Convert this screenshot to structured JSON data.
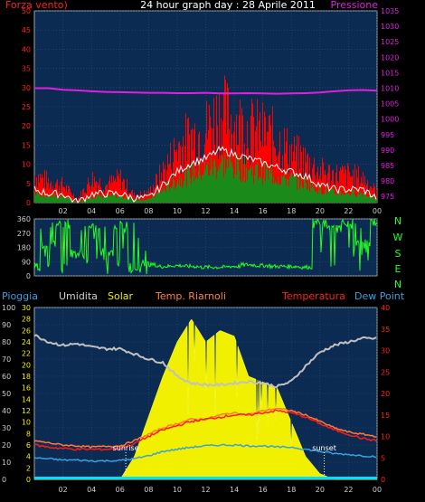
{
  "title": "24 hour graph day : 28 Aprile 2011",
  "colors": {
    "wind": "#ff0000",
    "gust_white": "#ffffff",
    "avg": "#1a8a1a",
    "pressure": "#e020e0",
    "direction": "#20ff20",
    "humidity": "#c0c0c0",
    "solar": "#f0f000",
    "temp_ri": "#ff7a3a",
    "temperatura": "#ff1a1a",
    "dewpoint": "#3aa0e0",
    "rain": "#00e0ff",
    "bg": "#0c2b52"
  },
  "chart_data": [
    {
      "type": "line",
      "id": "wind",
      "legend": {
        "left": "Forza vento)",
        "right": "Pressione"
      },
      "x_ticks": [
        "02",
        "04",
        "06",
        "08",
        "10",
        "12",
        "14",
        "16",
        "18",
        "20",
        "22",
        "00"
      ],
      "y_left": {
        "ticks": [
          0,
          5,
          10,
          15,
          20,
          25,
          30,
          35,
          40,
          45,
          50
        ],
        "range": [
          0,
          50
        ]
      },
      "y_right": {
        "ticks": [
          975,
          980,
          985,
          990,
          995,
          1000,
          1005,
          1010,
          1015,
          1020,
          1025,
          1030,
          1035
        ],
        "range": [
          973,
          1035
        ]
      },
      "x": [
        0,
        1,
        2,
        3,
        4,
        5,
        6,
        7,
        8,
        9,
        10,
        11,
        12,
        13,
        14,
        15,
        16,
        17,
        18,
        19,
        20,
        21,
        22,
        23,
        24
      ],
      "series": [
        {
          "name": "Forza vento)",
          "values": [
            8,
            6,
            5,
            1,
            7,
            5,
            7,
            2,
            3,
            9,
            16,
            19,
            21,
            26,
            23,
            21,
            20,
            18,
            14,
            12,
            9,
            8,
            8,
            7,
            3
          ]
        },
        {
          "name": "Forza media",
          "values": [
            3,
            2,
            2,
            0,
            2,
            2,
            2,
            1,
            1,
            4,
            7,
            9,
            10,
            12,
            11,
            10,
            9,
            8,
            7,
            6,
            4,
            3,
            3,
            3,
            1
          ]
        },
        {
          "name": "Pressione",
          "values": [
            1010,
            1010,
            1009.5,
            1009.3,
            1009,
            1008.8,
            1008.7,
            1008.6,
            1008.5,
            1008.5,
            1008.4,
            1008.4,
            1008.5,
            1008.3,
            1008.3,
            1008.4,
            1008.3,
            1008.2,
            1008.3,
            1008.4,
            1008.6,
            1009,
            1009.3,
            1009.4,
            1009.2
          ]
        }
      ]
    },
    {
      "type": "line",
      "id": "direction",
      "legend": {
        "right": [
          "N",
          "W",
          "S",
          "E",
          "N"
        ]
      },
      "y_left": {
        "ticks": [
          0,
          90,
          180,
          270,
          360
        ],
        "range": [
          0,
          360
        ]
      },
      "x": [
        0,
        1,
        2,
        3,
        4,
        5,
        6,
        7,
        8,
        9,
        10,
        11,
        12,
        13,
        14,
        15,
        16,
        17,
        18,
        19,
        20,
        21,
        22,
        23,
        24
      ],
      "series": [
        {
          "name": "Direzione",
          "values": [
            60,
            200,
            330,
            140,
            300,
            150,
            320,
            50,
            70,
            60,
            65,
            60,
            55,
            55,
            60,
            70,
            65,
            60,
            60,
            55,
            330,
            300,
            340,
            200,
            340
          ]
        }
      ]
    },
    {
      "type": "line",
      "id": "temp",
      "legend": {
        "labels": [
          "Pioggia",
          "Umidita",
          "Solar",
          "Temp. Riarnoli",
          "Temperatura",
          "Dew Point"
        ]
      },
      "x_ticks": [
        "02",
        "04",
        "06",
        "08",
        "10",
        "12",
        "14",
        "16",
        "18",
        "20",
        "22",
        "00"
      ],
      "y_outer": {
        "ticks": [
          0,
          10,
          20,
          30,
          40,
          50,
          60,
          70,
          80,
          90,
          100
        ],
        "range": [
          0,
          100
        ]
      },
      "y_inner": {
        "ticks": [
          0,
          2,
          4,
          6,
          8,
          10,
          12,
          14,
          16,
          18,
          20,
          22,
          24,
          26,
          28,
          30
        ],
        "range": [
          0,
          30
        ]
      },
      "y_right": {
        "ticks": [
          0,
          5,
          10,
          15,
          20,
          25,
          30,
          35,
          40
        ],
        "range": [
          0,
          40
        ]
      },
      "annotations": [
        "sunrise",
        "sunset"
      ],
      "x": [
        0,
        1,
        2,
        3,
        4,
        5,
        6,
        7,
        8,
        9,
        10,
        11,
        12,
        13,
        14,
        15,
        16,
        17,
        18,
        19,
        20,
        21,
        22,
        23,
        24
      ],
      "series": [
        {
          "name": "Umidita",
          "values": [
            84,
            80,
            78,
            79,
            77,
            76,
            76,
            73,
            70,
            68,
            60,
            56,
            55,
            55,
            56,
            57,
            56,
            54,
            57,
            66,
            74,
            78,
            80,
            82,
            82
          ]
        },
        {
          "name": "Solar",
          "values": [
            0,
            0,
            0,
            0,
            0,
            0,
            0,
            4,
            11,
            18,
            24,
            28,
            24,
            26,
            25,
            18,
            17,
            16,
            10,
            4,
            1,
            0,
            0,
            0,
            0
          ]
        },
        {
          "name": "Temp. Riarnoli",
          "values": [
            9,
            8.5,
            8,
            7.8,
            7.5,
            7.7,
            7.8,
            9,
            10.5,
            12,
            13,
            14,
            14,
            15,
            15.5,
            15,
            16,
            16.5,
            16,
            15,
            13.5,
            12,
            11,
            10.5,
            10
          ]
        },
        {
          "name": "Temperatura",
          "values": [
            8,
            7.5,
            7.2,
            7,
            7,
            7,
            7.2,
            8.3,
            10,
            11.5,
            12.5,
            13.5,
            14,
            14.5,
            15,
            15,
            15.5,
            16,
            15.5,
            14.5,
            13,
            11.5,
            10.5,
            9.5,
            9
          ]
        },
        {
          "name": "Dew Point",
          "values": [
            5,
            4.8,
            4.5,
            4.5,
            4.3,
            4.3,
            4.4,
            4.8,
            5.5,
            6.5,
            7,
            7.5,
            7.8,
            8,
            8,
            7.8,
            7.8,
            7.5,
            7.5,
            7,
            6.5,
            6,
            5.8,
            5.5,
            5.3
          ]
        },
        {
          "name": "Pioggia",
          "values": [
            0,
            0,
            0,
            0,
            0,
            0,
            0,
            0,
            0,
            0,
            0,
            0,
            0,
            0,
            0,
            0,
            0,
            0,
            0,
            0,
            0,
            0,
            0,
            0,
            0
          ]
        }
      ]
    }
  ]
}
